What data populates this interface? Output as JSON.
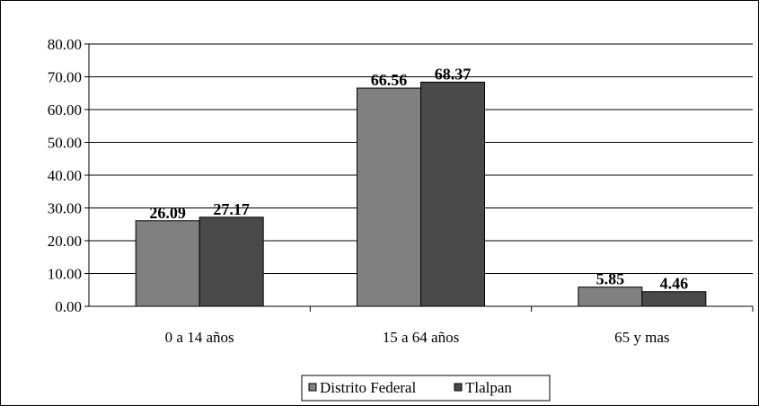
{
  "chart_data": {
    "type": "bar",
    "categories": [
      "0 a 14 años",
      "15 a 64 años",
      "65 y mas"
    ],
    "series": [
      {
        "name": "Distrito Federal",
        "values": [
          26.09,
          66.56,
          5.85
        ],
        "color": "#808080"
      },
      {
        "name": "Tlalpan",
        "values": [
          27.17,
          68.37,
          4.46
        ],
        "color": "#4a4a4a"
      }
    ],
    "data_labels": [
      [
        "26.09",
        "66.56",
        "5.85"
      ],
      [
        "27.17",
        "68.37",
        "4.46"
      ]
    ],
    "ylim": [
      0,
      80
    ],
    "yticks": [
      "0.00",
      "10.00",
      "20.00",
      "30.00",
      "40.00",
      "50.00",
      "60.00",
      "70.00",
      "80.00"
    ],
    "grid": true,
    "legend_position": "bottom"
  }
}
